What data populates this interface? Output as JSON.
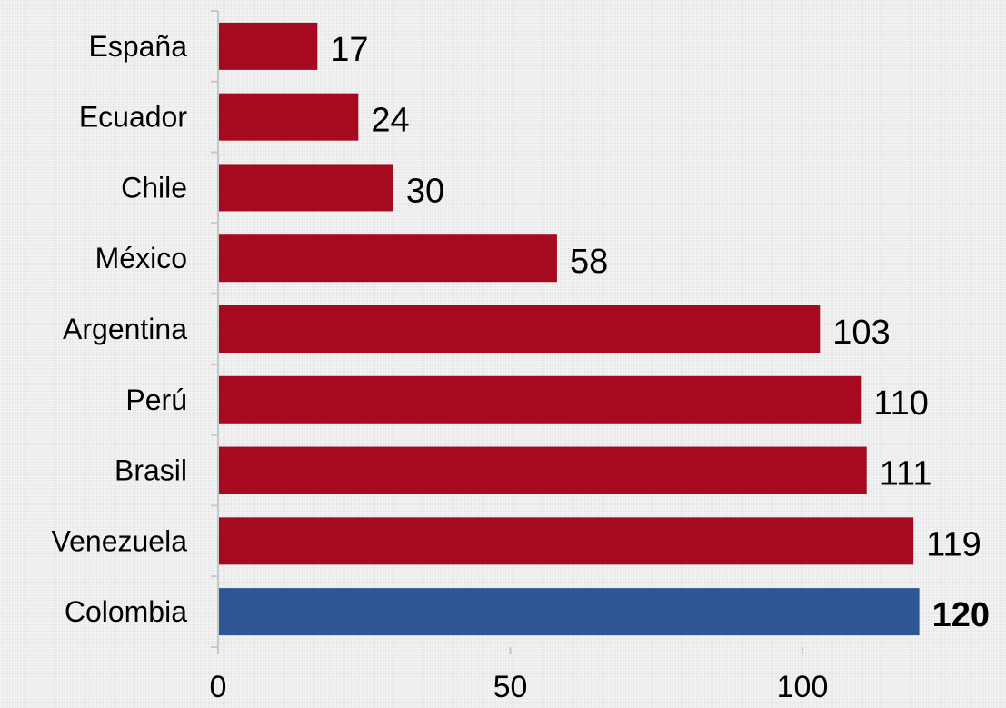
{
  "chart_data": {
    "type": "bar",
    "orientation": "horizontal",
    "categories": [
      "España",
      "Ecuador",
      "Chile",
      "México",
      "Argentina",
      "Perú",
      "Brasil",
      "Venezuela",
      "Colombia"
    ],
    "values": [
      17,
      24,
      30,
      58,
      103,
      110,
      111,
      119,
      120
    ],
    "value_labels": [
      "17",
      "24",
      "30",
      "58",
      "103",
      "110",
      "111",
      "119",
      "120"
    ],
    "highlight_category": "Colombia",
    "xticks": [
      "0",
      "50",
      "100"
    ],
    "xlim": [
      0,
      136
    ],
    "grid": false,
    "legend": "none",
    "title": "",
    "xlabel": "",
    "ylabel": ""
  },
  "colors": {
    "bar": "#a50a20",
    "highlight_bar": "#2e5594",
    "axis": "#c8c8c8"
  }
}
